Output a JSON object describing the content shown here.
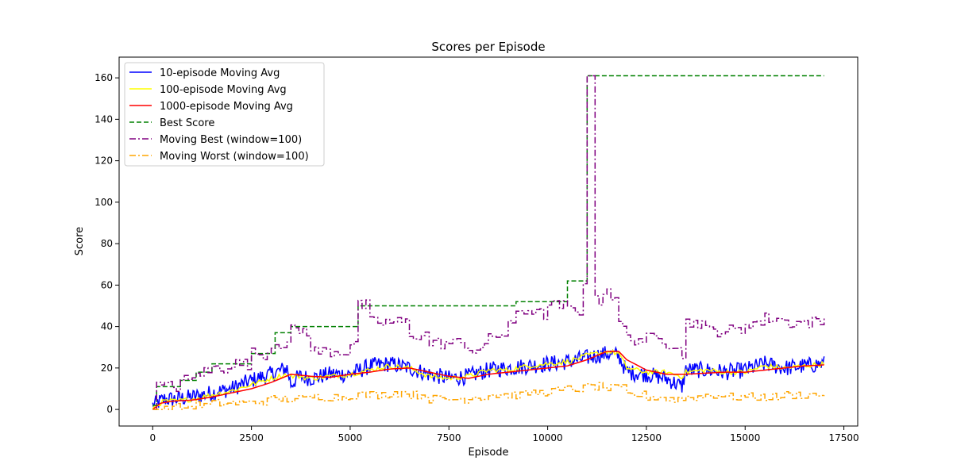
{
  "chart_data": {
    "type": "line",
    "title": "Scores per Episode",
    "xlabel": "Episode",
    "ylabel": "Score",
    "xlim": [
      -850,
      17850
    ],
    "ylim": [
      -8,
      170
    ],
    "xticks": [
      0,
      2500,
      5000,
      7500,
      10000,
      12500,
      15000,
      17500
    ],
    "xtick_labels": [
      "0",
      "2500",
      "5000",
      "7500",
      "10000",
      "12500",
      "15000",
      "17500"
    ],
    "yticks": [
      0,
      20,
      40,
      60,
      80,
      100,
      120,
      140,
      160
    ],
    "ytick_labels": [
      "0",
      "20",
      "40",
      "60",
      "80",
      "100",
      "120",
      "140",
      "160"
    ],
    "grid": false,
    "legend_position": "upper-left",
    "series": [
      {
        "name": "10-episode Moving Avg",
        "color": "#0000ff",
        "style": "solid",
        "x": [
          0,
          300,
          600,
          1000,
          1500,
          2000,
          2500,
          3000,
          3400,
          3500,
          3700,
          4000,
          4500,
          5000,
          5500,
          6000,
          6500,
          7000,
          7500,
          8000,
          8500,
          9000,
          9500,
          10000,
          10500,
          11000,
          11500,
          11800,
          12000,
          12500,
          13000,
          13400,
          13500,
          14000,
          14500,
          15000,
          15500,
          16000,
          16500,
          17000
        ],
        "y": [
          2,
          5,
          5,
          6,
          8,
          10,
          14,
          17,
          20,
          12,
          16,
          15,
          17,
          17,
          21,
          22,
          20,
          17,
          15,
          16,
          19,
          20,
          21,
          22,
          23,
          25,
          27,
          26,
          18,
          17,
          15,
          11,
          19,
          19,
          18,
          19,
          22,
          20,
          21,
          22
        ],
        "noise": 4
      },
      {
        "name": "100-episode Moving Avg",
        "color": "#ffff00",
        "style": "solid",
        "x": [
          0,
          300,
          600,
          1000,
          1500,
          2000,
          2500,
          3000,
          3400,
          3500,
          3700,
          4000,
          4500,
          5000,
          5500,
          6000,
          6500,
          7000,
          7500,
          8000,
          8500,
          9000,
          9500,
          10000,
          10500,
          11000,
          11500,
          11800,
          12000,
          12500,
          13000,
          13400,
          13500,
          14000,
          14500,
          15000,
          15500,
          16000,
          16500,
          17000
        ],
        "y": [
          1,
          4,
          4,
          5,
          7,
          9,
          12,
          15,
          17,
          16,
          16,
          15,
          16,
          17,
          19,
          21,
          20,
          16,
          15,
          16,
          19,
          19,
          21,
          22,
          23,
          26,
          28,
          27,
          20,
          18,
          18,
          16,
          18,
          19,
          18,
          18,
          21,
          20,
          21,
          22
        ],
        "noise": 1.2
      },
      {
        "name": "1000-episode Moving Avg",
        "color": "#ff0000",
        "style": "solid",
        "x": [
          0,
          200,
          500,
          1000,
          1500,
          2000,
          2500,
          3000,
          3500,
          4000,
          4500,
          5000,
          5500,
          6000,
          6500,
          7000,
          7500,
          8000,
          8500,
          9000,
          9500,
          10000,
          10500,
          11000,
          11500,
          11800,
          12000,
          12500,
          13000,
          13500,
          14000,
          14500,
          15000,
          15500,
          16000,
          16500,
          17000
        ],
        "y": [
          0,
          3,
          4,
          4.5,
          6,
          8,
          10,
          13,
          17,
          16,
          15.5,
          17,
          18,
          19.5,
          20,
          18,
          16,
          15,
          17,
          18,
          19,
          20,
          21,
          24,
          28,
          28,
          24,
          19,
          17,
          17,
          17.5,
          18,
          18,
          19,
          20,
          21,
          21.5
        ],
        "noise": 0
      },
      {
        "name": "Best Score",
        "color": "#008000",
        "style": "dashed",
        "step": true,
        "x": [
          0,
          100,
          700,
          1100,
          1500,
          1900,
          2500,
          3100,
          3500,
          5200,
          9200,
          10500,
          11000,
          17000
        ],
        "y": [
          2,
          11,
          14,
          18,
          22,
          22,
          27,
          37,
          40,
          50,
          52,
          62,
          161,
          161
        ],
        "noise": 0
      },
      {
        "name": "Moving Best (window=100)",
        "color": "#800080",
        "style": "dashdot",
        "step": true,
        "x": [
          0,
          100,
          700,
          1100,
          1500,
          1900,
          2500,
          3000,
          3500,
          4000,
          4500,
          5000,
          5200,
          5500,
          6000,
          6500,
          7000,
          7500,
          8000,
          8500,
          9000,
          9200,
          9700,
          10000,
          10500,
          10900,
          11000,
          11200,
          11400,
          11600,
          11800,
          12000,
          12500,
          13000,
          13400,
          13500,
          14000,
          14500,
          15000,
          15500,
          16000,
          16500,
          17000
        ],
        "y": [
          2,
          11,
          14,
          18,
          20,
          22,
          27,
          32,
          38,
          28,
          28,
          32,
          50,
          42,
          42,
          36,
          32,
          32,
          29,
          36,
          40,
          48,
          46,
          50,
          48,
          62,
          161,
          52,
          58,
          55,
          40,
          34,
          34,
          32,
          25,
          42,
          38,
          38,
          42,
          44,
          42,
          42,
          44
        ],
        "noise": 3
      },
      {
        "name": "Moving Worst (window=100)",
        "color": "#ffa500",
        "style": "dashdot",
        "step": true,
        "x": [
          0,
          500,
          1000,
          1500,
          2000,
          2500,
          3000,
          3500,
          4000,
          4500,
          5000,
          5500,
          6000,
          6500,
          7000,
          7500,
          8000,
          8500,
          9000,
          9500,
          10000,
          10500,
          11000,
          11500,
          12000,
          12500,
          13000,
          13500,
          14000,
          14500,
          15000,
          15500,
          16000,
          16500,
          17000
        ],
        "y": [
          0,
          1,
          2,
          3,
          3,
          4,
          5,
          5,
          6,
          6,
          7,
          7,
          8,
          7,
          5,
          5,
          6,
          7,
          7,
          8,
          9,
          10,
          11,
          10,
          7,
          6,
          5,
          6,
          7,
          6,
          6,
          6,
          7,
          7,
          8
        ],
        "noise": 2
      }
    ]
  }
}
